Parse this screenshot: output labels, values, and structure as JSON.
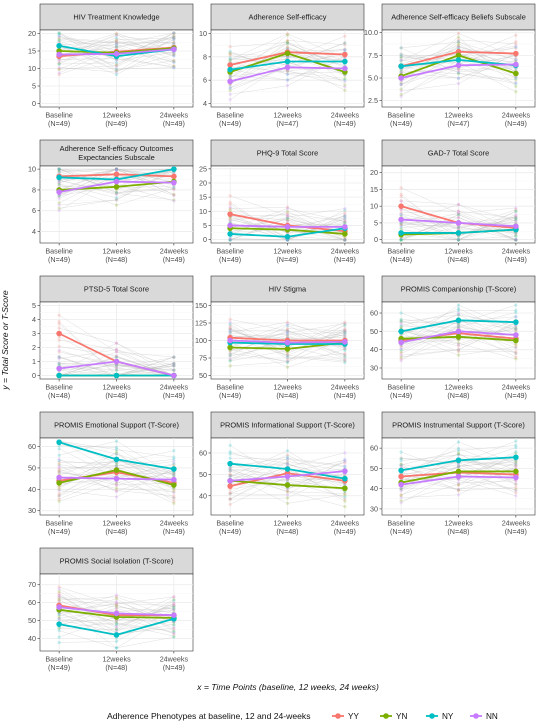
{
  "chart_data": {
    "type": "line",
    "ylabel": "y = Total Score or T-Score",
    "xlabel": "x = Time Points (baseline, 12 weeks, 24 weeks)",
    "x_levels": [
      "Baseline",
      "12weeks",
      "24weeks"
    ],
    "legend": {
      "title": "Adherence Phenotypes at baseline, 12 and 24-weeks",
      "position": "bottom",
      "series": [
        {
          "name": "YY",
          "color": "#F8766D"
        },
        {
          "name": "YN",
          "color": "#7CAE00"
        },
        {
          "name": "NY",
          "color": "#00BFC4"
        },
        {
          "name": "NN",
          "color": "#C77CFF"
        }
      ]
    },
    "grid": true,
    "panels": [
      {
        "title": [
          "HIV Treatment Knowledge"
        ],
        "ylim": [
          -1,
          21
        ],
        "yticks": [
          0,
          5,
          10,
          15,
          20
        ],
        "ns": [
          "(N=49)",
          "(N=49)",
          "(N=49)"
        ],
        "values": {
          "YY": [
            13.5,
            14.8,
            16
          ],
          "YN": [
            15,
            14.5,
            15.8
          ],
          "NY": [
            16.5,
            13.5,
            15.5
          ],
          "NN": [
            14,
            14.2,
            15.5
          ]
        }
      },
      {
        "title": [
          "Adherence Self-efficacy"
        ],
        "ylim": [
          3.7,
          10.3
        ],
        "yticks": [
          4,
          6,
          8,
          10
        ],
        "ns": [
          "(N=49)",
          "(N=47)",
          "(N=49)"
        ],
        "values": {
          "YY": [
            7.3,
            8.4,
            8.2
          ],
          "YN": [
            6.7,
            8.3,
            6.7
          ],
          "NY": [
            6.9,
            7.6,
            7.6
          ],
          "NN": [
            5.9,
            7.1,
            7.0
          ]
        }
      },
      {
        "title": [
          "Adherence Self-efficacy Beliefs Subscale"
        ],
        "ylim": [
          1.8,
          10.3
        ],
        "yticks": [
          2.5,
          5.0,
          7.5,
          10.0
        ],
        "tick_labels": [
          "2.5",
          "5.0",
          "7.5",
          "10.0"
        ],
        "ns": [
          "(N=49)",
          "(N=47)",
          "(N=49)"
        ],
        "values": {
          "YY": [
            6.3,
            7.9,
            7.7
          ],
          "YN": [
            5.2,
            7.5,
            5.5
          ],
          "NY": [
            6.3,
            7.0,
            6.4
          ],
          "NN": [
            5.0,
            6.4,
            6.5
          ]
        }
      },
      {
        "title": [
          "Adherence Self-efficacy Outcomes",
          "Expectancies Subscale"
        ],
        "ylim": [
          2.9,
          10.3
        ],
        "yticks": [
          4,
          6,
          8,
          10
        ],
        "ns": [
          "(N=49)",
          "(N=48)",
          "(N=49)"
        ],
        "values": {
          "YY": [
            9.3,
            9.5,
            9.3
          ],
          "YN": [
            8.0,
            8.3,
            8.8
          ],
          "NY": [
            9.2,
            9.0,
            10.0
          ],
          "NN": [
            7.8,
            8.8,
            8.7
          ]
        }
      },
      {
        "title": [
          "PHQ-9 Total Score"
        ],
        "ylim": [
          -1.2,
          26
        ],
        "yticks": [
          0,
          5,
          10,
          15,
          20,
          25
        ],
        "ns": [
          "(N=49)",
          "(N=49)",
          "(N=49)"
        ],
        "values": {
          "YY": [
            9,
            5,
            3
          ],
          "YN": [
            4,
            3.5,
            2
          ],
          "NY": [
            2,
            1,
            4
          ],
          "NN": [
            5,
            4.5,
            4.5
          ]
        }
      },
      {
        "title": [
          "GAD-7 Total Score"
        ],
        "ylim": [
          -1,
          22
        ],
        "yticks": [
          0,
          5,
          10,
          15,
          20
        ],
        "ns": [
          "(N=49)",
          "(N=48)",
          "(N=49)"
        ],
        "values": {
          "YY": [
            10,
            5,
            3.5
          ],
          "YN": [
            1.5,
            2,
            3
          ],
          "NY": [
            2,
            2,
            3
          ],
          "NN": [
            6,
            5,
            4
          ]
        }
      },
      {
        "title": [
          "PTSD-5 Total Score"
        ],
        "ylim": [
          -0.25,
          5.25
        ],
        "yticks": [
          0,
          1,
          2,
          3,
          4,
          5
        ],
        "ns": [
          "(N=48)",
          "(N=48)",
          "(N=49)"
        ],
        "values": {
          "YY": [
            3,
            1,
            0
          ],
          "YN": [
            0,
            0,
            0
          ],
          "NY": [
            0,
            0,
            0
          ],
          "NN": [
            0.5,
            1,
            0
          ]
        }
      },
      {
        "title": [
          "HIV Stigma"
        ],
        "ylim": [
          45,
          155
        ],
        "yticks": [
          50,
          75,
          100,
          125,
          150
        ],
        "ns": [
          "(N=49)",
          "(N=48)",
          "(N=49)"
        ],
        "values": {
          "YY": [
            104,
            100,
            100
          ],
          "YN": [
            90,
            88,
            97
          ],
          "NY": [
            97,
            95,
            95
          ],
          "NN": [
            100,
            97,
            98
          ]
        }
      },
      {
        "title": [
          "PROMIS Companionship (T-Score)"
        ],
        "ylim": [
          24,
          66
        ],
        "yticks": [
          30,
          40,
          50,
          60
        ],
        "ns": [
          "(N=49)",
          "(N=48)",
          "(N=49)"
        ],
        "values": {
          "YY": [
            45,
            49,
            46
          ],
          "YN": [
            46,
            47,
            45
          ],
          "NY": [
            50,
            56,
            55
          ],
          "NN": [
            44,
            50,
            48
          ]
        }
      },
      {
        "title": [
          "PROMIS Emotional Support (T-Score)"
        ],
        "ylim": [
          28,
          64
        ],
        "yticks": [
          30,
          40,
          50,
          60
        ],
        "ns": [
          "(N=49)",
          "(N=48)",
          "(N=49)"
        ],
        "values": {
          "YY": [
            44,
            48,
            43
          ],
          "YN": [
            43,
            49,
            42
          ],
          "NY": [
            62,
            54,
            49.5
          ],
          "NN": [
            45.5,
            45,
            44.5
          ]
        }
      },
      {
        "title": [
          "PROMIS Informational Support (T-Score)"
        ],
        "ylim": [
          31,
          67
        ],
        "yticks": [
          40,
          50,
          60
        ],
        "ns": [
          "(N=49)",
          "(N=48)",
          "(N=49)"
        ],
        "values": {
          "YY": [
            44.5,
            50.5,
            47
          ],
          "YN": [
            47,
            45,
            43.5
          ],
          "NY": [
            55,
            52.5,
            48
          ],
          "NN": [
            47,
            49,
            51.5
          ]
        }
      },
      {
        "title": [
          "PROMIS Instrumental Support (T-Score)"
        ],
        "ylim": [
          27,
          65
        ],
        "yticks": [
          30,
          40,
          50,
          60
        ],
        "ns": [
          "(N=49)",
          "(N=48)",
          "(N=49)"
        ],
        "values": {
          "YY": [
            46,
            48,
            47
          ],
          "YN": [
            43,
            48.5,
            48.5
          ],
          "NY": [
            49,
            54,
            55.5
          ],
          "NN": [
            42,
            46,
            45.5
          ]
        }
      },
      {
        "title": [
          "PROMIS Social Isolation (T-Score)"
        ],
        "ylim": [
          33,
          76
        ],
        "yticks": [
          40,
          50,
          60,
          70
        ],
        "ns": [
          "(N=49)",
          "(N=48)",
          "(N=49)"
        ],
        "values": {
          "YY": [
            58.5,
            53,
            53
          ],
          "YN": [
            56,
            52,
            51.5
          ],
          "NY": [
            48,
            42,
            51
          ],
          "NN": [
            57.5,
            54,
            53
          ]
        }
      }
    ]
  }
}
